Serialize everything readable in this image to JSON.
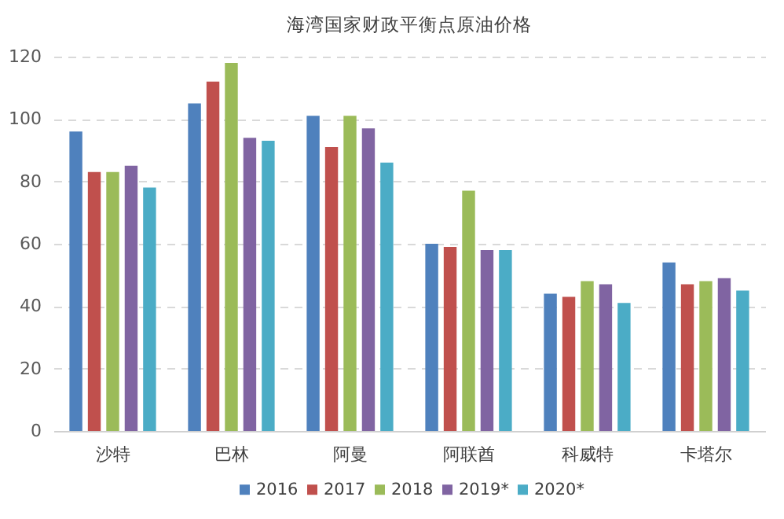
{
  "chart_data": {
    "type": "bar",
    "title": "海湾国家财政平衡点原油价格",
    "categories": [
      "沙特",
      "巴林",
      "阿曼",
      "阿联酋",
      "科威特",
      "卡塔尔"
    ],
    "series": [
      {
        "name": "2016",
        "color": "#4f81bd",
        "values": [
          96,
          105,
          101,
          60,
          44,
          54
        ]
      },
      {
        "name": "2017",
        "color": "#c0504d",
        "values": [
          83,
          112,
          91,
          59,
          43,
          47
        ]
      },
      {
        "name": "2018",
        "color": "#9bbb59",
        "values": [
          83,
          118,
          101,
          77,
          48,
          48
        ]
      },
      {
        "name": "2019*",
        "color": "#8064a2",
        "values": [
          85,
          94,
          97,
          58,
          47,
          49
        ]
      },
      {
        "name": "2020*",
        "color": "#4bacc6",
        "values": [
          78,
          93,
          86,
          58,
          41,
          45
        ]
      }
    ],
    "ylim": [
      0,
      120
    ],
    "yticks": [
      0,
      20,
      40,
      60,
      80,
      100,
      120
    ],
    "grid": "y",
    "legend": "bottom"
  }
}
